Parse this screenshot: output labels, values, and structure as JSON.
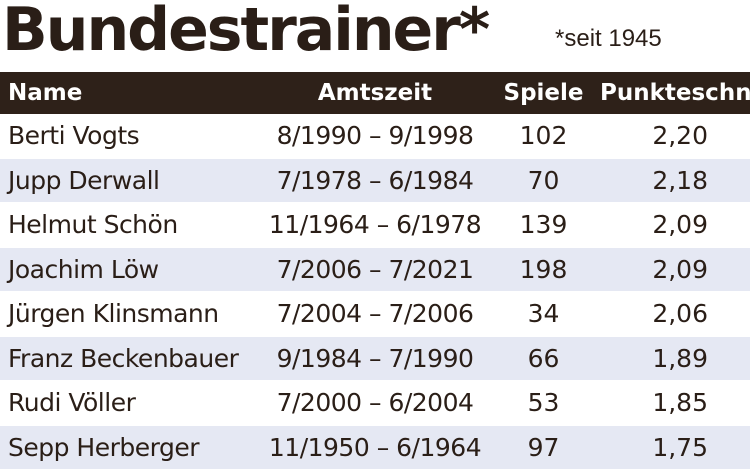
{
  "header": {
    "title": "Bundestrainer*",
    "subtitle": "*seit 1945"
  },
  "table": {
    "columns": [
      "Name",
      "Amtszeit",
      "Spiele",
      "Punkteschnitt"
    ],
    "rows": [
      {
        "name": "Berti Vogts",
        "amtszeit": "8/1990 – 9/1998",
        "spiele": "102",
        "punkteschnitt": "2,20"
      },
      {
        "name": "Jupp Derwall",
        "amtszeit": "7/1978 – 6/1984",
        "spiele": "70",
        "punkteschnitt": "2,18"
      },
      {
        "name": "Helmut Schön",
        "amtszeit": "11/1964 – 6/1978",
        "spiele": "139",
        "punkteschnitt": "2,09"
      },
      {
        "name": "Joachim Löw",
        "amtszeit": "7/2006 – 7/2021",
        "spiele": "198",
        "punkteschnitt": "2,09"
      },
      {
        "name": "Jürgen Klinsmann",
        "amtszeit": "7/2004 – 7/2006",
        "spiele": "34",
        "punkteschnitt": "2,06"
      },
      {
        "name": "Franz Beckenbauer",
        "amtszeit": "9/1984 – 7/1990",
        "spiele": "66",
        "punkteschnitt": "1,89"
      },
      {
        "name": "Rudi Völler",
        "amtszeit": "7/2000 – 6/2004",
        "spiele": "53",
        "punkteschnitt": "1,85"
      },
      {
        "name": "Sepp Herberger",
        "amtszeit": "11/1950 – 6/1964",
        "spiele": "97",
        "punkteschnitt": "1,75"
      }
    ]
  },
  "colors": {
    "header_bg": "#2e2119",
    "row_stripe": "#e5e8f3",
    "text": "#2a1e17"
  }
}
